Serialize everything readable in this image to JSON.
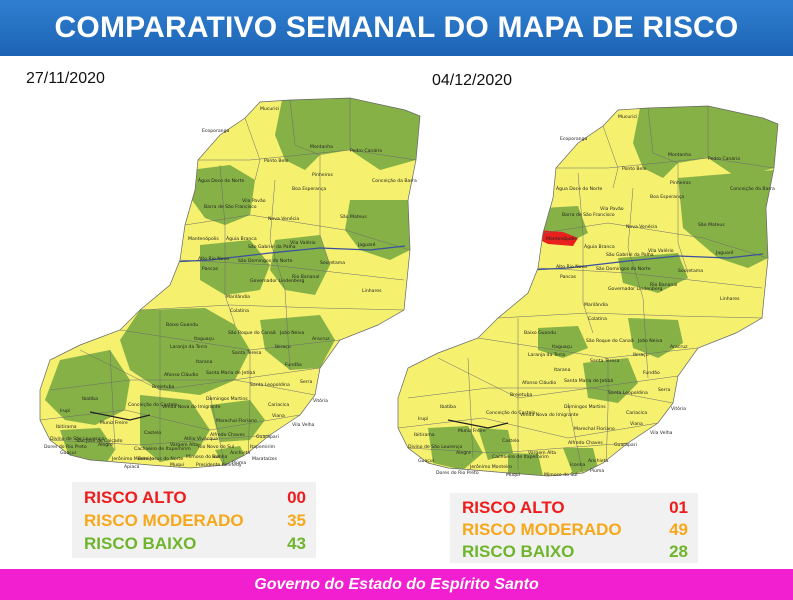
{
  "header": {
    "title": "COMPARATIVO SEMANAL DO MAPA DE RISCO"
  },
  "footer": {
    "text": "Governo do Estado do Espírito Santo"
  },
  "colors": {
    "header_blue": "#1d63b5",
    "footer_magenta": "#f21fd0",
    "risco_alto": "#ee1c1c",
    "risco_moderado": "#f6a81b",
    "risco_baixo": "#6fb52c",
    "map_yellow": "#f5f06e",
    "map_green": "#86b146",
    "map_red": "#e8201e"
  },
  "maps": {
    "left": {
      "date": "27/11/2020",
      "legend": {
        "alto": {
          "label": "RISCO ALTO",
          "value": "00"
        },
        "moderado": {
          "label": "RISCO MODERADO",
          "value": "35"
        },
        "baixo": {
          "label": "RISCO BAIXO",
          "value": "43"
        }
      }
    },
    "right": {
      "date": "04/12/2020",
      "legend": {
        "alto": {
          "label": "RISCO ALTO",
          "value": "01"
        },
        "moderado": {
          "label": "RISCO MODERADO",
          "value": "49"
        },
        "baixo": {
          "label": "RISCO BAIXO",
          "value": "28"
        }
      }
    }
  },
  "municipality_labels": [
    "Mucurici",
    "Montanha",
    "Pedro Canário",
    "Ecoporanga",
    "Ponto Belo",
    "Pinheiros",
    "Boa Esperança",
    "Conceição da Barra",
    "Água Doce do Norte",
    "Barra de São Francisco",
    "Vila Pavão",
    "Nova Venécia",
    "São Mateus",
    "Mantenópolis",
    "Águia Branca",
    "São Gabriel da Palha",
    "Vila Valério",
    "Jaguaré",
    "Alto Rio Novo",
    "Pancas",
    "São Domingos do Norte",
    "Sooretama",
    "Governador Lindenberg",
    "Rio Bananal",
    "Linhares",
    "Marilândia",
    "Colatina",
    "Baixo Guandu",
    "São Roque do Canaã",
    "Itaguaçu",
    "João Neiva",
    "Aracruz",
    "Laranja da Terra",
    "Santa Teresa",
    "Ibiraçu",
    "Itarana",
    "Fundão",
    "Afonso Cláudio",
    "Santa Maria de Jetibá",
    "Santa Leopoldina",
    "Serra",
    "Brejetuba",
    "Vitória",
    "Domingos Martins",
    "Cariacica",
    "Ibatiba",
    "Conceição do Castelo",
    "Venda Nova do Imigrante",
    "Viana",
    "Vila Velha",
    "Irupi",
    "Ibitirama",
    "Muniz Freire",
    "Marechal Floriano",
    "Guarapari",
    "Castelo",
    "Divino de São Lourenço",
    "Alfredo Chaves",
    "Alegre",
    "Cachoeiro de Itapemirim",
    "Anchieta",
    "Guaçuí",
    "Jerônimo Monteiro",
    "Vargem Alta",
    "Iconha",
    "Piúma",
    "Muqui",
    "Itapemirim",
    "Mimoso do Sul",
    "Presidente Kennedy",
    "Marataízes",
    "Apiacá",
    "Dores do Rio Preto",
    "São José do Calçado",
    "Bom Jesus do Norte",
    "Atílio Vivácqua",
    "Rio Novo do Sul"
  ]
}
